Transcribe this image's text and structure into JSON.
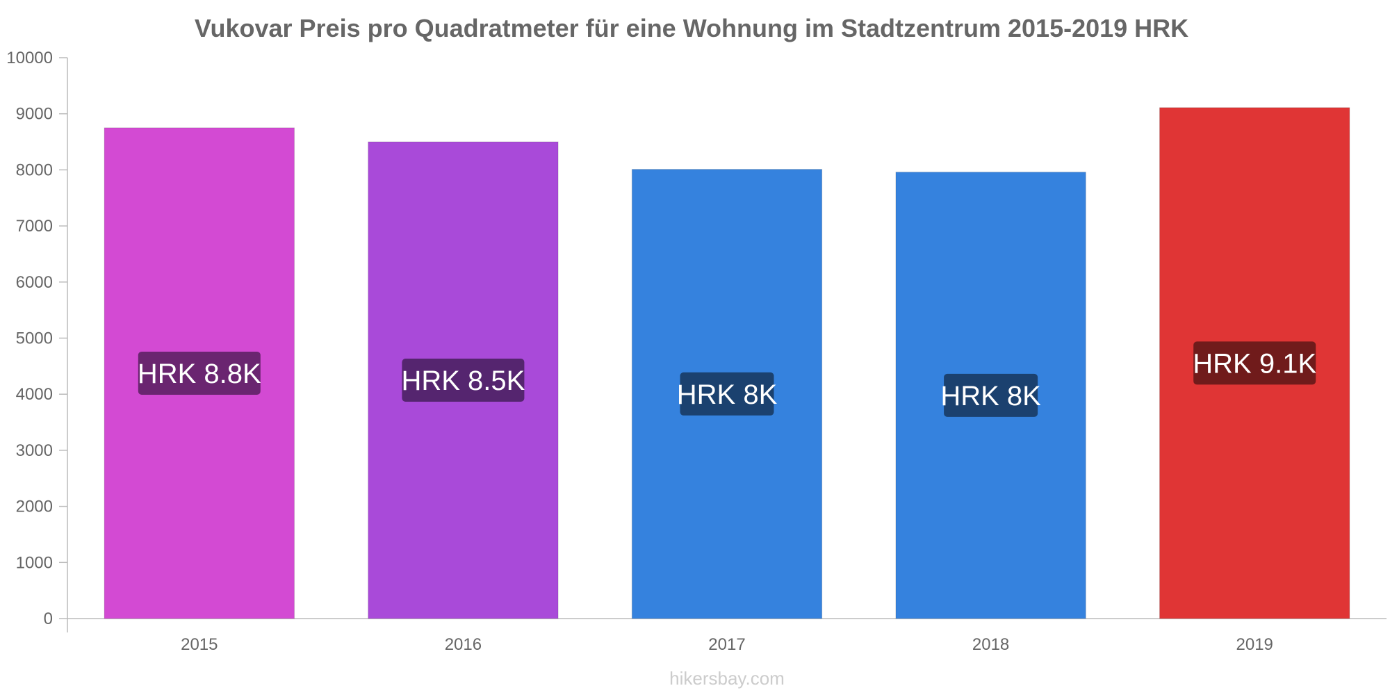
{
  "chart_data": {
    "type": "bar",
    "title": "Vukovar Preis pro Quadratmeter für eine Wohnung im Stadtzentrum 2015-2019 HRK",
    "categories": [
      "2015",
      "2016",
      "2017",
      "2018",
      "2019"
    ],
    "values": [
      8750,
      8500,
      8010,
      7960,
      9110
    ],
    "labels": [
      "HRK 8.8K",
      "HRK 8.5K",
      "HRK 8K",
      "HRK 8K",
      "HRK 9.1K"
    ],
    "colors": [
      "#d34ad3",
      "#a94ad9",
      "#3582de",
      "#3582de",
      "#e03535"
    ],
    "label_bg_colors": [
      "#6a2570",
      "#55256f",
      "#1b416f",
      "#1b416f",
      "#701b1b"
    ],
    "ylim": [
      0,
      10000
    ],
    "yticks": [
      "0",
      "1000",
      "2000",
      "3000",
      "4000",
      "5000",
      "6000",
      "7000",
      "8000",
      "9000",
      "10000"
    ],
    "xlabel": "",
    "ylabel": "",
    "grid": false,
    "legend": "none"
  },
  "source": "hikersbay.com"
}
